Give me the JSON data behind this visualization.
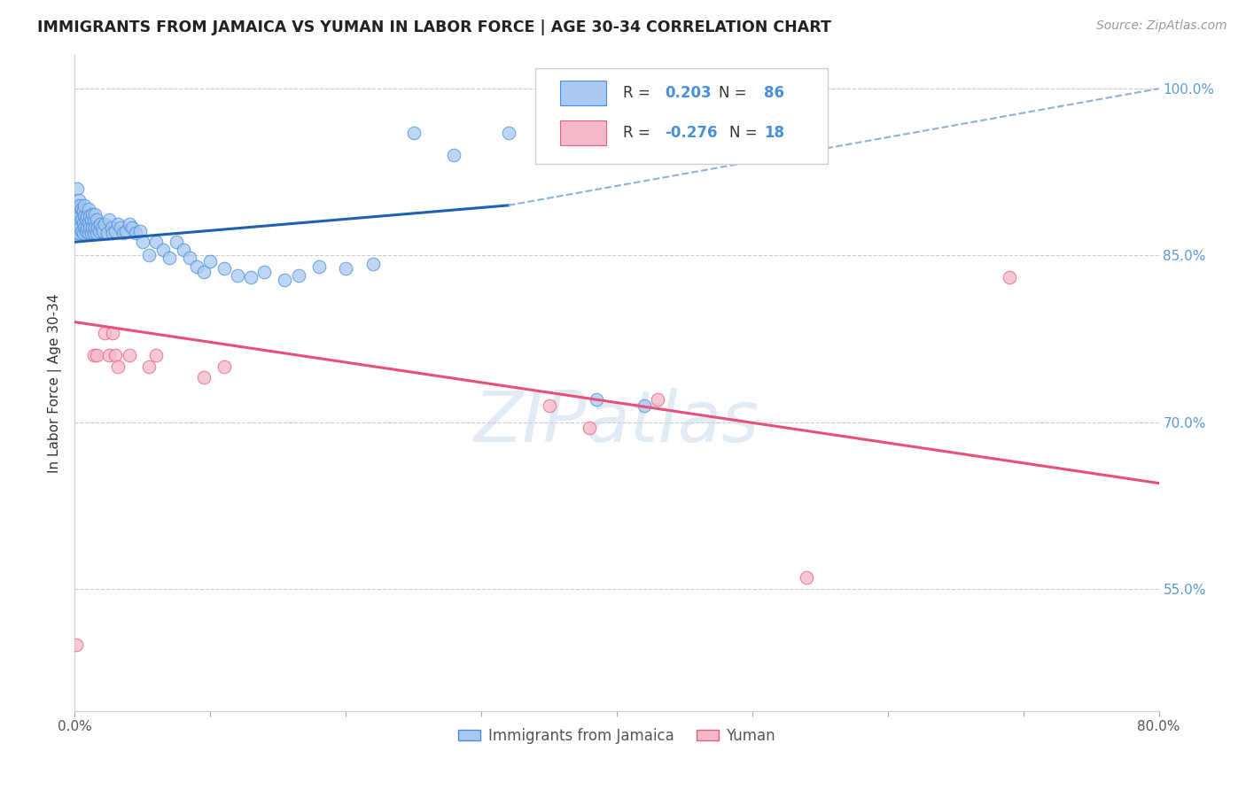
{
  "title": "IMMIGRANTS FROM JAMAICA VS YUMAN IN LABOR FORCE | AGE 30-34 CORRELATION CHART",
  "source": "Source: ZipAtlas.com",
  "ylabel": "In Labor Force | Age 30-34",
  "xlim": [
    0.0,
    0.8
  ],
  "ylim": [
    0.44,
    1.03
  ],
  "xtick_positions": [
    0.0,
    0.1,
    0.2,
    0.3,
    0.4,
    0.5,
    0.6,
    0.7,
    0.8
  ],
  "xticklabels": [
    "0.0%",
    "",
    "",
    "",
    "",
    "",
    "",
    "",
    "80.0%"
  ],
  "yticks_right": [
    0.55,
    0.7,
    0.85,
    1.0
  ],
  "ytick_right_labels": [
    "55.0%",
    "70.0%",
    "85.0%",
    "100.0%"
  ],
  "R_blue": 0.203,
  "N_blue": 86,
  "R_pink": -0.276,
  "N_pink": 18,
  "blue_fill": "#a8c8f0",
  "blue_edge": "#4a90d9",
  "pink_fill": "#f4b8c8",
  "pink_edge": "#e8607a",
  "blue_line_color": "#2060b0",
  "pink_line_color": "#e8507a",
  "dashed_line_color": "#90b0d8",
  "watermark": "ZIPatlas",
  "legend_blue_label": "Immigrants from Jamaica",
  "legend_pink_label": "Yuman",
  "blue_scatter_x": [
    0.001,
    0.001,
    0.002,
    0.002,
    0.002,
    0.002,
    0.003,
    0.003,
    0.003,
    0.003,
    0.004,
    0.004,
    0.004,
    0.005,
    0.005,
    0.005,
    0.006,
    0.006,
    0.006,
    0.007,
    0.007,
    0.007,
    0.008,
    0.008,
    0.009,
    0.009,
    0.01,
    0.01,
    0.01,
    0.011,
    0.011,
    0.012,
    0.012,
    0.013,
    0.013,
    0.014,
    0.014,
    0.015,
    0.015,
    0.016,
    0.016,
    0.017,
    0.018,
    0.019,
    0.02,
    0.021,
    0.022,
    0.024,
    0.025,
    0.027,
    0.028,
    0.03,
    0.032,
    0.034,
    0.036,
    0.038,
    0.04,
    0.042,
    0.045,
    0.048,
    0.05,
    0.055,
    0.06,
    0.065,
    0.07,
    0.075,
    0.08,
    0.085,
    0.09,
    0.095,
    0.1,
    0.11,
    0.12,
    0.13,
    0.14,
    0.155,
    0.165,
    0.18,
    0.2,
    0.22,
    0.25,
    0.28,
    0.32,
    0.35,
    0.385,
    0.42
  ],
  "blue_scatter_y": [
    0.875,
    0.885,
    0.87,
    0.88,
    0.895,
    0.91,
    0.87,
    0.88,
    0.89,
    0.9,
    0.875,
    0.885,
    0.895,
    0.872,
    0.882,
    0.892,
    0.87,
    0.88,
    0.89,
    0.875,
    0.885,
    0.895,
    0.872,
    0.882,
    0.875,
    0.885,
    0.87,
    0.88,
    0.892,
    0.875,
    0.885,
    0.87,
    0.882,
    0.875,
    0.887,
    0.87,
    0.882,
    0.875,
    0.887,
    0.87,
    0.882,
    0.875,
    0.872,
    0.878,
    0.875,
    0.872,
    0.878,
    0.87,
    0.882,
    0.875,
    0.87,
    0.872,
    0.878,
    0.875,
    0.87,
    0.872,
    0.878,
    0.875,
    0.87,
    0.872,
    0.862,
    0.85,
    0.862,
    0.855,
    0.848,
    0.862,
    0.855,
    0.848,
    0.84,
    0.835,
    0.845,
    0.838,
    0.832,
    0.83,
    0.835,
    0.828,
    0.832,
    0.84,
    0.838,
    0.842,
    0.96,
    0.94,
    0.96,
    0.95,
    0.72,
    0.715
  ],
  "pink_scatter_x": [
    0.001,
    0.014,
    0.016,
    0.022,
    0.025,
    0.028,
    0.03,
    0.032,
    0.04,
    0.055,
    0.06,
    0.095,
    0.11,
    0.35,
    0.38,
    0.43,
    0.54,
    0.69
  ],
  "pink_scatter_y": [
    0.5,
    0.76,
    0.76,
    0.78,
    0.76,
    0.78,
    0.76,
    0.75,
    0.76,
    0.75,
    0.76,
    0.74,
    0.75,
    0.715,
    0.695,
    0.72,
    0.56,
    0.83
  ],
  "blue_trend_x0": 0.0,
  "blue_trend_x1": 0.32,
  "blue_trend_y0": 0.862,
  "blue_trend_y1": 0.895,
  "dashed_trend_x0": 0.32,
  "dashed_trend_x1": 0.8,
  "dashed_trend_y0": 0.895,
  "dashed_trend_y1": 1.0,
  "pink_trend_x0": 0.0,
  "pink_trend_x1": 0.8,
  "pink_trend_y0": 0.79,
  "pink_trend_y1": 0.645
}
